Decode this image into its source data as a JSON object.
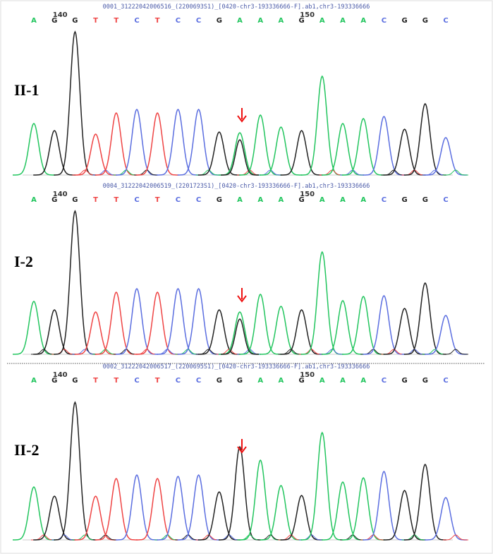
{
  "panels": [
    {
      "label": "II-1",
      "header": "0001_31222042006516_(2200693S1)_[0420-chr3-193336666-F].ab1,chr3-193336666",
      "ticks": [
        "140",
        "150"
      ],
      "bases": [
        "A",
        "G",
        "G",
        "T",
        "T",
        "C",
        "T",
        "C",
        "C",
        "G",
        "A",
        "A",
        "A",
        "G",
        "A",
        "A",
        "A",
        "C",
        "G",
        "G",
        "C"
      ]
    },
    {
      "label": "I-2",
      "header": "0004_31222042006519_(2201723S1)_[0420-chr3-193336666-F].ab1,chr3-193336666",
      "ticks": [
        "140",
        "150"
      ],
      "bases": [
        "A",
        "G",
        "G",
        "T",
        "T",
        "C",
        "T",
        "C",
        "C",
        "G",
        "A",
        "A",
        "A",
        "G",
        "A",
        "A",
        "A",
        "C",
        "G",
        "G",
        "C"
      ]
    },
    {
      "label": "II-2",
      "header": "0002_31222042006517_(2200695S1)_[0420-chr3-193336666-F].ab1,chr3-193336666",
      "ticks": [
        "140",
        "150"
      ],
      "bases": [
        "A",
        "G",
        "G",
        "T",
        "T",
        "C",
        "T",
        "C",
        "C",
        "G",
        "G",
        "A",
        "A",
        "G",
        "A",
        "A",
        "A",
        "C",
        "G",
        "G",
        "C"
      ]
    }
  ]
}
